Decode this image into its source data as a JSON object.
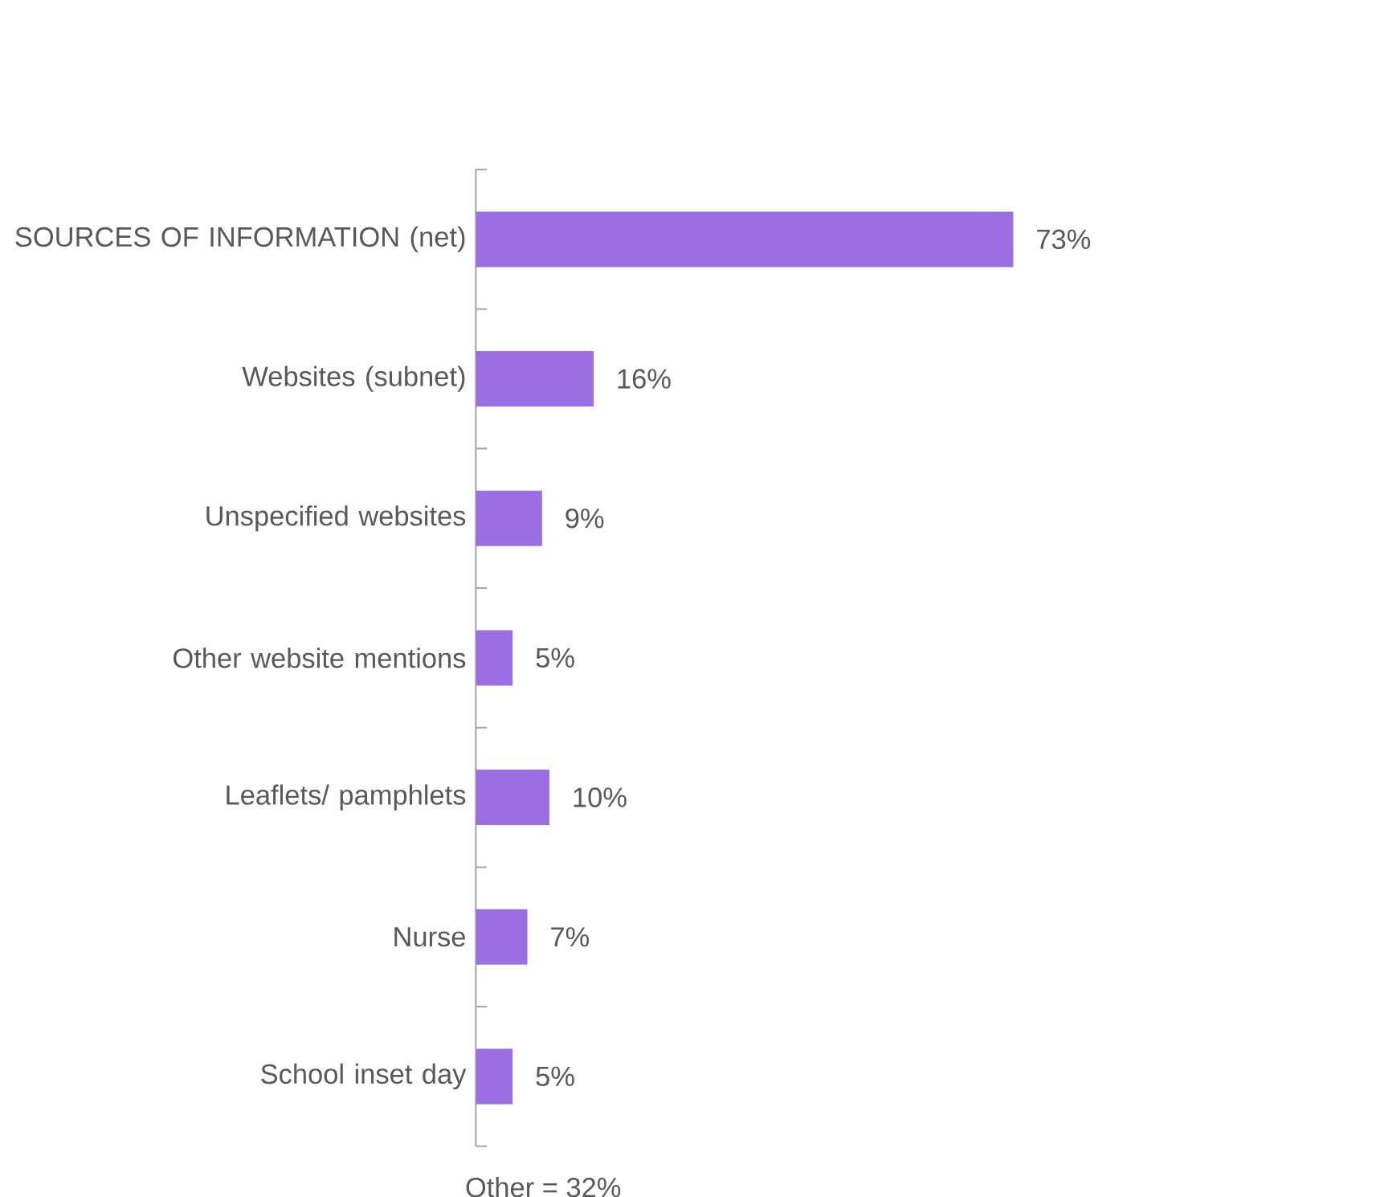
{
  "chart_data": {
    "type": "bar",
    "orientation": "horizontal",
    "color": "#9b6fe3",
    "categories": [
      "SOURCES OF INFORMATION (net)",
      "Websites (subnet)",
      "Unspecified websites",
      "Other website mentions",
      "Leaflets/ pamphlets",
      "Nurse",
      "School inset day"
    ],
    "values": [
      73,
      16,
      9,
      5,
      10,
      7,
      5
    ],
    "value_labels": [
      "73%",
      "16%",
      "9%",
      "5%",
      "10%",
      "7%",
      "5%"
    ],
    "annotations": [
      "Other = 32%"
    ]
  }
}
